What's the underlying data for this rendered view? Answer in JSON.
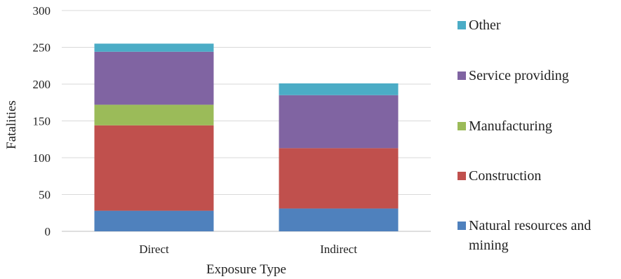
{
  "chart_data": {
    "type": "bar",
    "stacked": true,
    "categories": [
      "Direct",
      "Indirect"
    ],
    "series": [
      {
        "name": "Natural resources and mining",
        "color": "#4f81bd",
        "values": [
          28,
          31
        ]
      },
      {
        "name": "Construction",
        "color": "#c0504d",
        "values": [
          116,
          82
        ]
      },
      {
        "name": "Manufacturing",
        "color": "#9bbb59",
        "values": [
          28,
          0
        ]
      },
      {
        "name": "Service providing",
        "color": "#8064a2",
        "values": [
          72,
          72
        ]
      },
      {
        "name": "Other",
        "color": "#4bacc6",
        "values": [
          11,
          16
        ]
      }
    ],
    "xlabel": "Exposure Type",
    "ylabel": "Fatalities",
    "ylim": [
      0,
      300
    ],
    "yticks": [
      "0",
      "50",
      "100",
      "150",
      "200",
      "250",
      "300"
    ],
    "grid": true,
    "legend_position": "right"
  }
}
